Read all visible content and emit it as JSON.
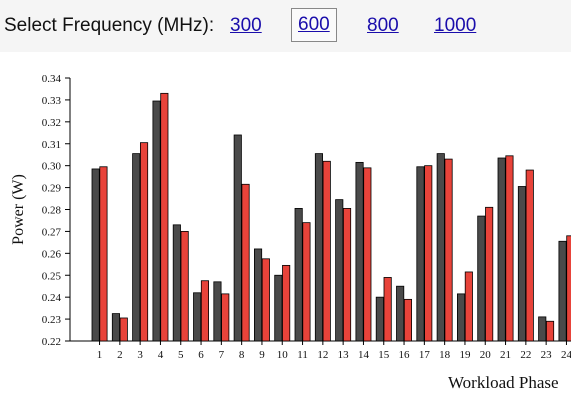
{
  "frequency_selector": {
    "label": "Select Frequency (MHz):",
    "options": [
      "300",
      "600",
      "800",
      "1000"
    ],
    "selected": "600"
  },
  "chart_data": {
    "type": "bar",
    "title": "",
    "xlabel": "Workload Phase",
    "ylabel": "Power (W)",
    "ylim": [
      0.22,
      0.34
    ],
    "yticks": [
      "0.22",
      "0.23",
      "0.24",
      "0.25",
      "0.26",
      "0.27",
      "0.28",
      "0.29",
      "0.30",
      "0.31",
      "0.32",
      "0.33",
      "0.34"
    ],
    "categories": [
      "1",
      "2",
      "3",
      "4",
      "5",
      "6",
      "7",
      "8",
      "9",
      "10",
      "11",
      "12",
      "13",
      "14",
      "15",
      "16",
      "17",
      "18",
      "19",
      "20",
      "21",
      "22",
      "23",
      "24"
    ],
    "colors": [
      "#4a4a4a",
      "#e8433a"
    ],
    "series": [
      {
        "values": [
          0.2985,
          0.2325,
          0.3055,
          0.3295,
          0.273,
          0.242,
          0.247,
          0.314,
          0.262,
          0.25,
          0.2805,
          0.3055,
          0.2845,
          0.3015,
          0.24,
          0.245,
          0.2995,
          0.3055,
          0.2415,
          0.277,
          0.3035,
          0.2905,
          0.231,
          0.2655
        ]
      },
      {
        "values": [
          0.2995,
          0.2305,
          0.3105,
          0.333,
          0.27,
          0.2475,
          0.2415,
          0.2915,
          0.2575,
          0.2545,
          0.274,
          0.302,
          0.2805,
          0.299,
          0.249,
          0.239,
          0.3,
          0.303,
          0.2515,
          0.281,
          0.3045,
          0.298,
          0.229,
          0.268
        ]
      }
    ]
  }
}
